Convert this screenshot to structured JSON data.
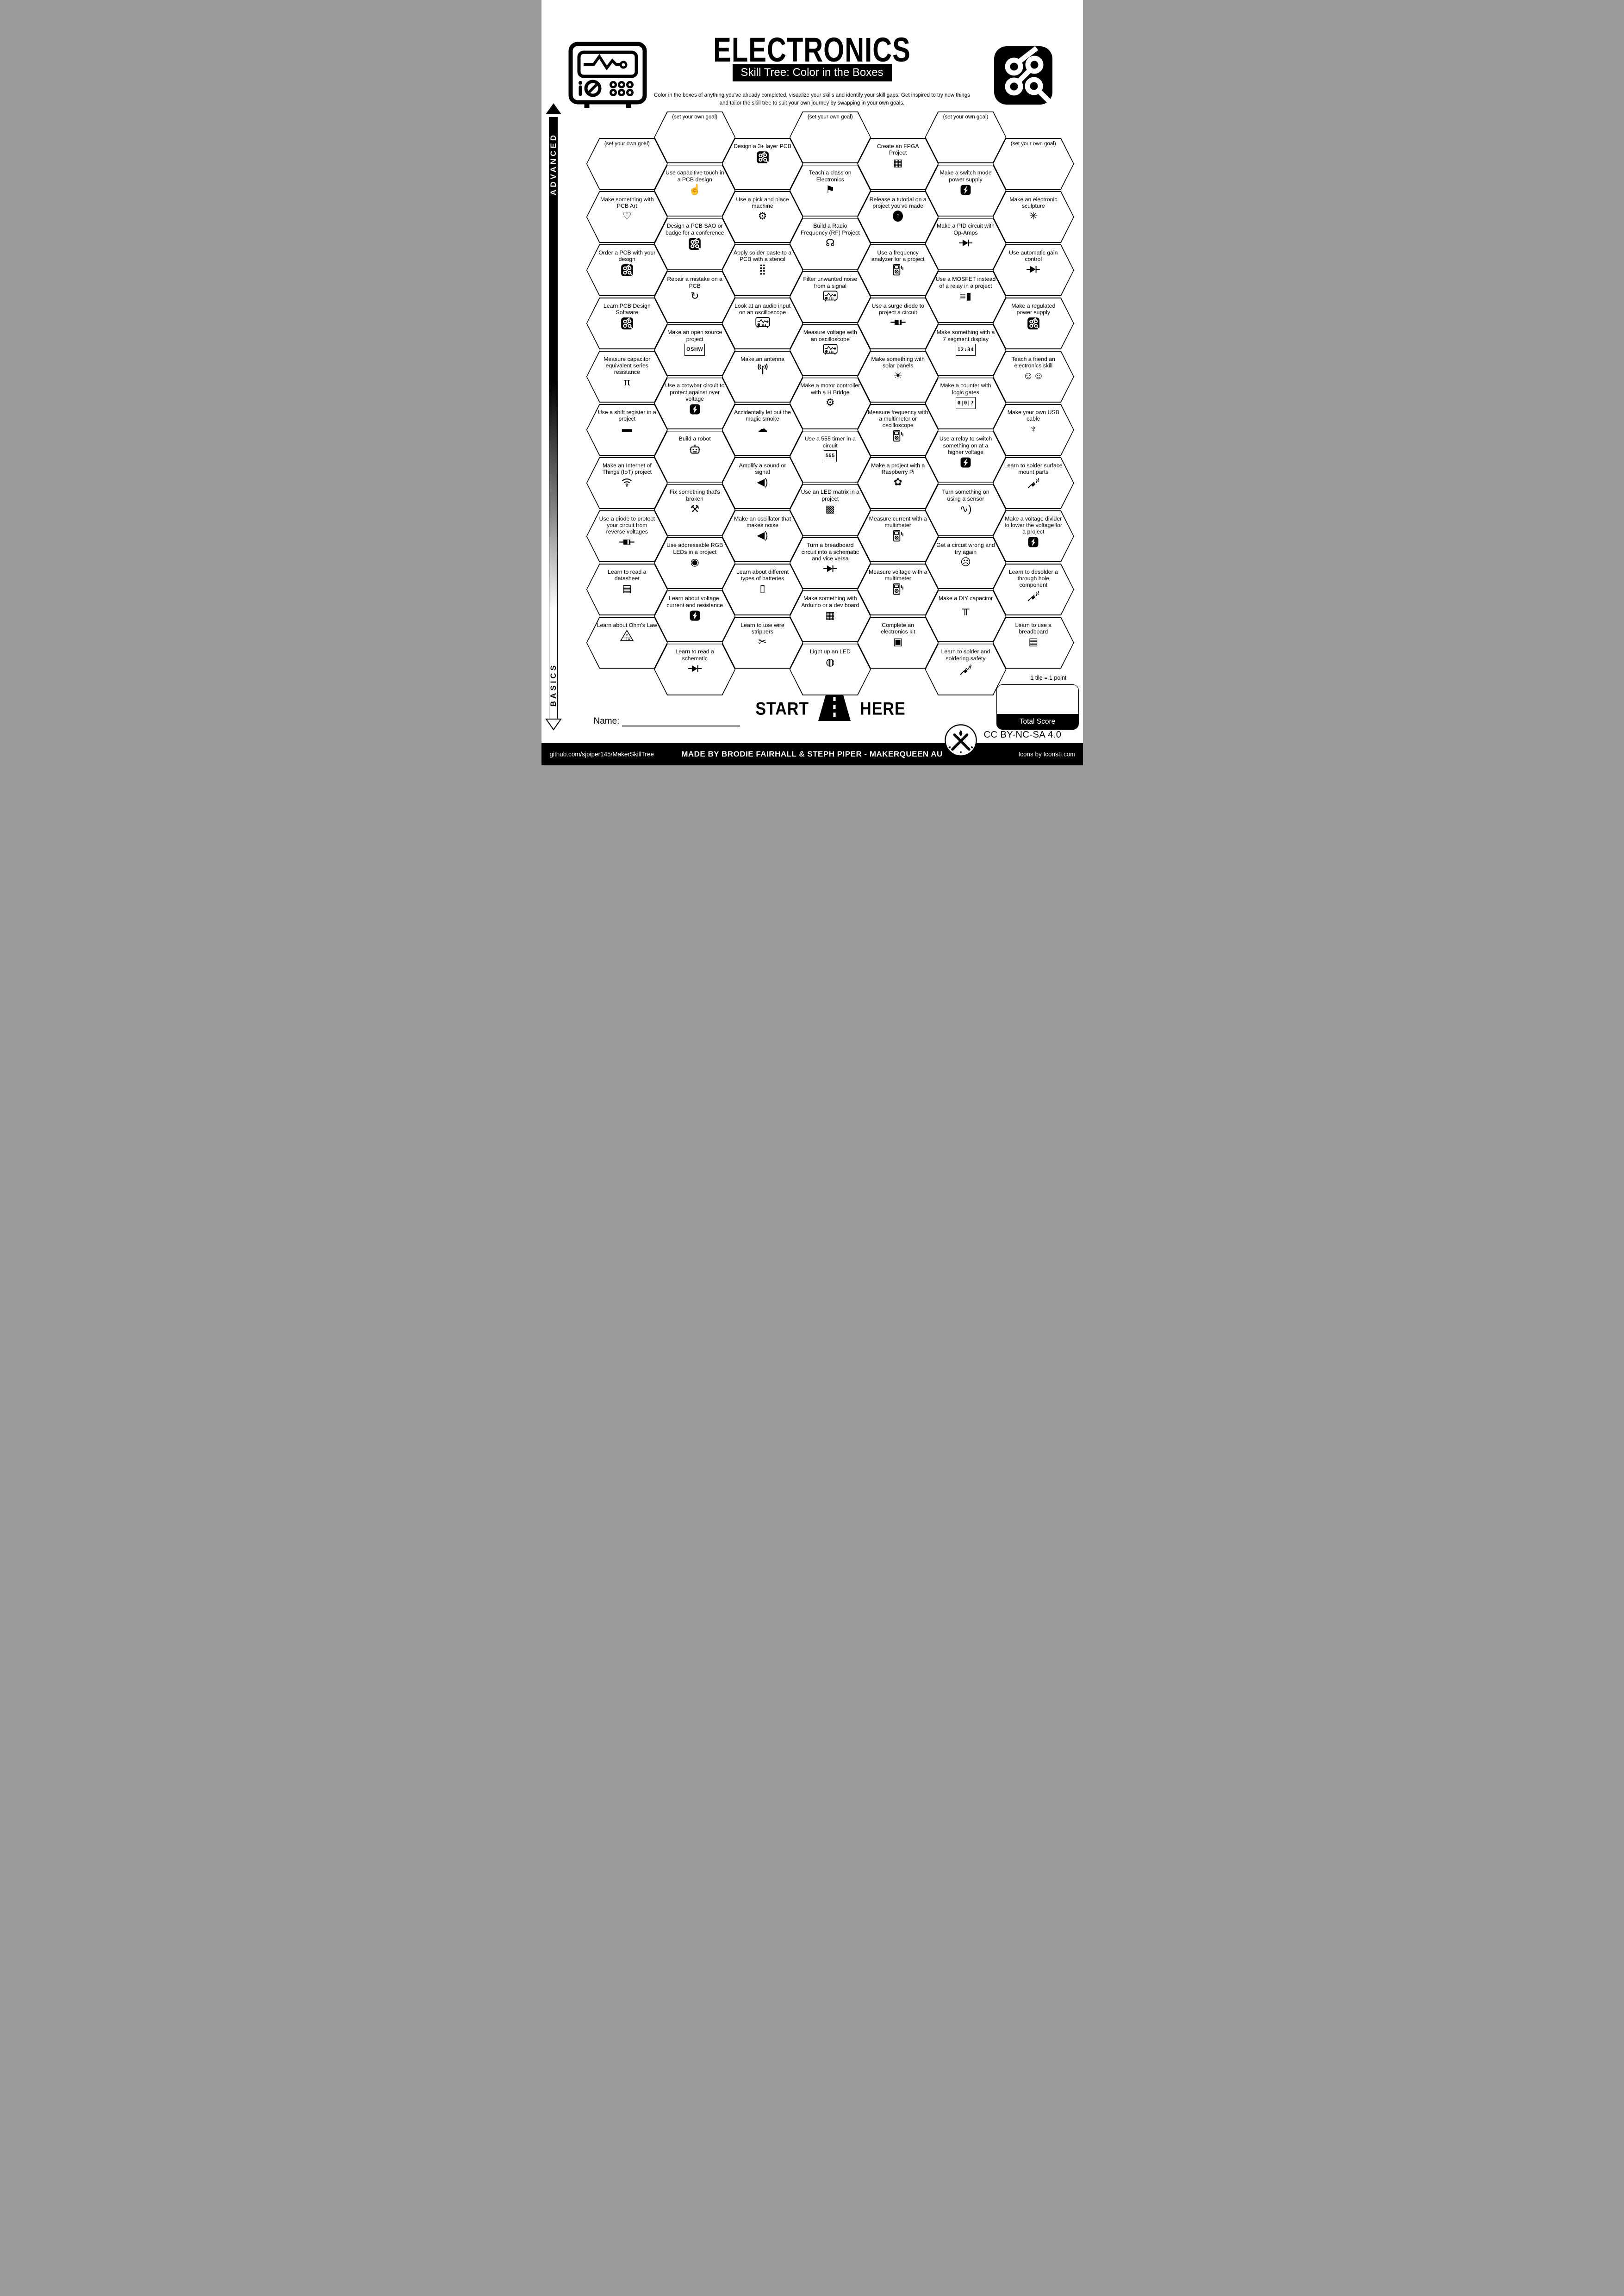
{
  "header": {
    "title": "ELECTRONICS",
    "subtitle": "Skill Tree: Color in the Boxes",
    "description": "Color in the boxes of anything you've already completed, visualize your skills and identify your skill gaps.  Get inspired to try new things and tailor the skill tree to suit your own journey by swapping in your own goals."
  },
  "axis": {
    "advanced": "ADVANCED",
    "basics": "BASICS"
  },
  "start": {
    "start": "START",
    "here": "HERE"
  },
  "name_label": "Name:",
  "scoring": {
    "tile_note": "1 tile = 1 point",
    "total_label": "Total Score"
  },
  "license": "CC BY-NC-SA 4.0",
  "footer": {
    "left": "github.com/sjpiper145/MakerSkillTree",
    "center": "MADE BY BRODIE FAIRHALL & STEPH PIPER  -  MAKERQUEEN AU",
    "right": "Icons by Icons8.com"
  },
  "hexes": [
    {
      "c": 1,
      "r": 0,
      "label": "(set your own goal)",
      "icon": "goal"
    },
    {
      "c": 1,
      "r": 1,
      "label": "Make something with PCB Art",
      "icon": "heart",
      "glyph": "♡"
    },
    {
      "c": 1,
      "r": 2,
      "label": "Order a PCB with your design",
      "icon": "order-pcb",
      "svg": "pcb"
    },
    {
      "c": 1,
      "r": 3,
      "label": "Learn PCB Design Software",
      "icon": "pcb-design-software",
      "svg": "pcb"
    },
    {
      "c": 1,
      "r": 4,
      "label": "Measure capacitor equivalent series resistance",
      "icon": "capacitor-esr",
      "glyph": "π"
    },
    {
      "c": 1,
      "r": 5,
      "label": "Use a shift register in a project",
      "icon": "shift-register",
      "glyph": "▬"
    },
    {
      "c": 1,
      "r": 6,
      "label": "Make an Internet of Things (IoT) project",
      "icon": "wifi",
      "svg": "wifi"
    },
    {
      "c": 1,
      "r": 7,
      "label": "Use a diode to protect your circuit from reverse voltages",
      "icon": "diode-component",
      "svg": "dcomp"
    },
    {
      "c": 1,
      "r": 8,
      "label": "Learn to read a datasheet",
      "icon": "datasheet",
      "glyph": "▤"
    },
    {
      "c": 1,
      "r": 9,
      "label": "Learn about Ohm's Law",
      "icon": "ohms-triangle",
      "svg": "ohm"
    },
    {
      "c": 2,
      "r": 0,
      "label": "(set your own goal)",
      "icon": "goal"
    },
    {
      "c": 2,
      "r": 1,
      "label": "Use capacitive touch in a PCB design",
      "icon": "touch",
      "glyph": "☝"
    },
    {
      "c": 2,
      "r": 2,
      "label": "Design a PCB SAO or badge for a conference",
      "icon": "sao-badge",
      "svg": "pcb"
    },
    {
      "c": 2,
      "r": 3,
      "label": "Repair a mistake on a PCB",
      "icon": "repair",
      "glyph": "↻"
    },
    {
      "c": 2,
      "r": 4,
      "label": "Make an open source project",
      "icon": "oshw-badge",
      "glyph": "OSHW"
    },
    {
      "c": 2,
      "r": 5,
      "label": "Use a crowbar circuit to protect against over voltage",
      "icon": "lightning",
      "svg": "bolt"
    },
    {
      "c": 2,
      "r": 6,
      "label": "Build a robot",
      "icon": "robot",
      "svg": "robot"
    },
    {
      "c": 2,
      "r": 7,
      "label": "Fix something that's broken",
      "icon": "tools",
      "glyph": "⚒"
    },
    {
      "c": 2,
      "r": 8,
      "label": "Use addressable RGB LEDs in a project",
      "icon": "rgb-led",
      "glyph": "◉"
    },
    {
      "c": 2,
      "r": 9,
      "label": "Learn about voltage, current and resistance",
      "icon": "lightning",
      "svg": "bolt"
    },
    {
      "c": 2,
      "r": 10,
      "label": "Learn to read a schematic",
      "icon": "diode-symbol",
      "svg": "diode"
    },
    {
      "c": 3,
      "r": 0,
      "label": "Design a 3+ layer PCB",
      "icon": "multilayer-pcb",
      "svg": "pcb"
    },
    {
      "c": 3,
      "r": 1,
      "label": "Use a pick and place machine",
      "icon": "pick-and-place",
      "glyph": "⚙"
    },
    {
      "c": 3,
      "r": 2,
      "label": "Apply solder paste to a PCB with a stencil",
      "icon": "stencil",
      "glyph": "⣿"
    },
    {
      "c": 3,
      "r": 3,
      "label": "Look at an audio input on an oscilloscope",
      "icon": "oscilloscope",
      "svg": "scope"
    },
    {
      "c": 3,
      "r": 4,
      "label": "Make an antenna",
      "icon": "antenna",
      "svg": "ant"
    },
    {
      "c": 3,
      "r": 5,
      "label": "Accidentally let out the magic smoke",
      "icon": "smoke-cloud",
      "glyph": "☁"
    },
    {
      "c": 3,
      "r": 6,
      "label": "Amplify a sound or signal",
      "icon": "speaker",
      "glyph": "◀)"
    },
    {
      "c": 3,
      "r": 7,
      "label": "Make an oscillator that makes noise",
      "icon": "speaker",
      "glyph": "◀)"
    },
    {
      "c": 3,
      "r": 8,
      "label": "Learn about different types of batteries",
      "icon": "battery",
      "glyph": "▯"
    },
    {
      "c": 3,
      "r": 9,
      "label": "Learn to use wire strippers",
      "icon": "wire-strippers",
      "glyph": "✂"
    },
    {
      "c": 4,
      "r": 0,
      "label": "(set your own goal)",
      "icon": "goal"
    },
    {
      "c": 4,
      "r": 1,
      "label": "Teach a class on Electronics",
      "icon": "presenter",
      "glyph": "⚑"
    },
    {
      "c": 4,
      "r": 2,
      "label": "Build a Radio Frequency (RF) Project",
      "icon": "radio",
      "glyph": "☊"
    },
    {
      "c": 4,
      "r": 3,
      "label": "Filter unwanted noise from a signal",
      "icon": "oscilloscope",
      "svg": "scope"
    },
    {
      "c": 4,
      "r": 4,
      "label": "Measure voltage with an oscilloscope",
      "icon": "oscilloscope",
      "svg": "scope"
    },
    {
      "c": 4,
      "r": 5,
      "label": "Make a motor controller with a H Bridge",
      "icon": "motor",
      "glyph": "⚙"
    },
    {
      "c": 4,
      "r": 6,
      "label": "Use a 555 timer in a circuit",
      "icon": "555-chip",
      "glyph": "555"
    },
    {
      "c": 4,
      "r": 7,
      "label": "Use an LED matrix in a project",
      "icon": "led-matrix",
      "glyph": "▩"
    },
    {
      "c": 4,
      "r": 8,
      "label": "Turn a breadboard circuit into a schematic and vice versa",
      "icon": "diode-symbol",
      "svg": "diode"
    },
    {
      "c": 4,
      "r": 9,
      "label": "Make something with Arduino or a dev board",
      "icon": "dev-board",
      "glyph": "▦"
    },
    {
      "c": 4,
      "r": 10,
      "label": "Light up an LED",
      "icon": "led",
      "glyph": "◍"
    },
    {
      "c": 5,
      "r": 0,
      "label": "Create an FPGA Project",
      "icon": "fpga-grid",
      "glyph": "▦"
    },
    {
      "c": 5,
      "r": 1,
      "label": "Release a tutorial on a project you've made",
      "icon": "upload-arrow",
      "glyph": "↑",
      "circle": true
    },
    {
      "c": 5,
      "r": 2,
      "label": "Use a frequency analyzer for a project",
      "icon": "multimeter",
      "svg": "meter"
    },
    {
      "c": 5,
      "r": 3,
      "label": "Use a surge diode to project a circuit",
      "icon": "diode-component",
      "svg": "dcomp"
    },
    {
      "c": 5,
      "r": 4,
      "label": "Make something with solar panels",
      "icon": "solar-panel",
      "glyph": "☀"
    },
    {
      "c": 5,
      "r": 5,
      "label": "Measure frequency with a multimeter or oscilloscope",
      "icon": "multimeter",
      "svg": "meter"
    },
    {
      "c": 5,
      "r": 6,
      "label": "Make a project with a Raspberry Pi",
      "icon": "raspberry",
      "glyph": "✿"
    },
    {
      "c": 5,
      "r": 7,
      "label": "Measure current with a multimeter",
      "icon": "multimeter",
      "svg": "meter"
    },
    {
      "c": 5,
      "r": 8,
      "label": "Measure voltage with a multimeter",
      "icon": "multimeter",
      "svg": "meter"
    },
    {
      "c": 5,
      "r": 9,
      "label": "Complete an electronics kit",
      "icon": "kit-box",
      "glyph": "▣"
    },
    {
      "c": 6,
      "r": 0,
      "label": "(set your own goal)",
      "icon": "goal"
    },
    {
      "c": 6,
      "r": 1,
      "label": "Make a switch mode power supply",
      "icon": "lightning",
      "svg": "bolt"
    },
    {
      "c": 6,
      "r": 2,
      "label": "Make a PID circuit with Op-Amps",
      "icon": "opamp-symbol",
      "svg": "diode"
    },
    {
      "c": 6,
      "r": 3,
      "label": "Use a MOSFET instead of a relay in a project",
      "icon": "mosfet",
      "glyph": "≡▮"
    },
    {
      "c": 6,
      "r": 4,
      "label": "Make something with a 7 segment display",
      "icon": "7-segment",
      "glyph": "12:34",
      "mono": true
    },
    {
      "c": 6,
      "r": 5,
      "label": "Make a counter with logic gates",
      "icon": "digit-counter",
      "glyph": "0|0|7",
      "mono": true
    },
    {
      "c": 6,
      "r": 6,
      "label": "Use a relay to switch something on at a higher voltage",
      "icon": "lightning",
      "svg": "bolt"
    },
    {
      "c": 6,
      "r": 7,
      "label": "Turn something on using a sensor",
      "icon": "sensor-wave",
      "glyph": "∿)"
    },
    {
      "c": 6,
      "r": 8,
      "label": "Get a circuit wrong and try again",
      "icon": "facepalm",
      "glyph": "☹"
    },
    {
      "c": 6,
      "r": 9,
      "label": "Make a DIY capacitor",
      "icon": "capacitor",
      "glyph": "╥"
    },
    {
      "c": 6,
      "r": 10,
      "label": "Learn to solder and soldering safety",
      "icon": "soldering-iron",
      "svg": "iron"
    },
    {
      "c": 7,
      "r": 0,
      "label": "(set your own goal)",
      "icon": "goal"
    },
    {
      "c": 7,
      "r": 1,
      "label": "Make an electronic sculpture",
      "icon": "sculpture",
      "glyph": "✳"
    },
    {
      "c": 7,
      "r": 2,
      "label": "Use automatic gain control",
      "icon": "diode-symbol",
      "svg": "diode"
    },
    {
      "c": 7,
      "r": 3,
      "label": "Make a regulated power supply",
      "icon": "pcb",
      "svg": "pcb"
    },
    {
      "c": 7,
      "r": 4,
      "label": "Teach a friend an electronics skill",
      "icon": "two-people",
      "glyph": "☺☺"
    },
    {
      "c": 7,
      "r": 5,
      "label": "Make your own USB cable",
      "icon": "usb",
      "glyph": "♆"
    },
    {
      "c": 7,
      "r": 6,
      "label": "Learn to solder surface mount parts",
      "icon": "soldering-iron",
      "svg": "iron"
    },
    {
      "c": 7,
      "r": 7,
      "label": "Make a voltage divider to lower the voltage for a project",
      "icon": "lightning",
      "svg": "bolt"
    },
    {
      "c": 7,
      "r": 8,
      "label": "Learn to desolder a through hole component",
      "icon": "soldering-iron",
      "svg": "iron"
    },
    {
      "c": 7,
      "r": 9,
      "label": "Learn to use a breadboard",
      "icon": "breadboard",
      "glyph": "▤"
    }
  ],
  "icon_svgs": {
    "pcb": "<svg viewBox='0 0 24 24' width='28' height='28'><rect x='1' y='1' width='22' height='22' rx='5' fill='#000'/><g fill='none' stroke='#fff' stroke-width='2'><circle cx='8' cy='8.5' r='2.6'/><circle cx='16.5' cy='8' r='2.6'/><circle cx='8' cy='16.5' r='2.6'/><circle cx='16.5' cy='16.5' r='2.6'/><path d='M10 7 L17 1.5'/><path d='M15 10 L9.5 15'/><path d='M18.3 18.3 L22.5 22.5'/></g></svg>",
    "meter": "<svg viewBox='0 0 24 24' width='26' height='26' fill='none' stroke='#000' stroke-width='1.6'><rect x='3' y='1.5' width='13' height='21' rx='2'/><rect x='5.5' y='4' width='8' height='5'/><circle cx='9.5' cy='15.5' r='3.2'/><path d='M8 17 L11 14'/><path d='M19.5 4 v6 M22 7 v6'/><circle cx='14' cy='20' r='0.9' fill='#000' stroke='none'/></svg>",
    "scope": "<svg viewBox='0 0 28 22' width='32' height='25' fill='none' stroke='#000' stroke-width='1.5'><rect x='1' y='1' width='26' height='17' rx='3'/><path d='M4 9 h4 l3-4 4 6 3-4 2 2 h3' stroke-width='1.3'/><circle cx='23' cy='9' r='1.3'/><circle cx='6.5' cy='14.5' r='1.8'/><path d='M5.5 15.5 L7.5 13.5' stroke-width='1.2'/><g fill='#000' stroke='none'><circle cx='13' cy='14' r='0.9'/><circle cx='16' cy='14' r='0.9'/><circle cx='19' cy='14' r='0.9'/><circle cx='13' cy='16.2' r='0.9'/><circle cx='16' cy='16.2' r='0.9'/><circle cx='19' cy='16.2' r='0.9'/></g><path d='M5 18 v2.5 M23 18 v2.5' stroke-width='2'/></svg>",
    "iron": "<svg viewBox='0 0 24 24' width='27' height='27' fill='none' stroke='#000' stroke-width='1.8' stroke-linecap='round'><path d='M2.5 21.5 L8.5 15.5'/><path d='M8.5 15.8 l3.2-3.2 2.8 2.8 -3.2 3.2 z' fill='#000' stroke-width='1.2'/><path d='M12.5 11.5 l1.3-1.3 M14.3 13.3 l1.3-1.3' stroke-width='1.3'/><path d='M18.5 5.5 q1.6 1.6 0 3.2 q-1.6 1.6 0 3.2' stroke-width='1.3'/><path d='M21.7 3.5 q1.6 1.6 0 3.2 q-1.6 1.6 0 3.2' stroke-width='1.3'/></svg>",
    "bolt": "<svg viewBox='0 0 24 24' width='25' height='25'><rect x='1.5' y='1.5' width='21' height='21' rx='5' fill='#000'/><path d='M14.8 3.5 L7.5 12.6 h3.6 L9.2 20.5 L16.5 11.4 h-3.6 z' fill='#fff'/></svg>",
    "diode": "<svg viewBox='0 0 28 18' width='31' height='20'><path d='M1 9 h7 M20 9 h7 M19.5 2.5 v13' fill='none' stroke='#000' stroke-width='1.8'/><path d='M8 2.5 L19 9 L8 15.5 z' fill='#000'/></svg>",
    "dcomp": "<svg viewBox='0 0 30 12' width='33' height='13'><path d='M0 6 h8 M22 6 h8' stroke='#000' stroke-width='2'/><rect x='8' y='1' width='14' height='10' fill='#000'/><rect x='16' y='1.5' width='3' height='9' fill='#efefef'/></svg>",
    "ohm": "<svg viewBox='0 0 26 22' width='29' height='25'><path d='M13 1 L25 21 H1 z' fill='none' stroke='#000' stroke-width='1.4'/><path d='M6 13.8 h14 M13 13.8 v7' stroke='#000' stroke-width='1.1'/><text x='13' y='12' font-size='6.5' text-anchor='middle' font-family='Liberation Sans'>V</text><text x='9.2' y='20' font-size='6.5' text-anchor='middle' font-family='Liberation Sans'>I</text><text x='17.5' y='20' font-size='6.5' text-anchor='middle' font-family='Liberation Sans'>R</text></svg>",
    "wifi": "<svg viewBox='0 0 24 19' width='27' height='22' fill='none' stroke='#000' stroke-width='1.8'><path d='M3 7.5 a12 12 0 0 1 18 0'/><path d='M6.5 11 a8 8 0 0 1 11 0'/><path d='M9.6 14 a4.2 4.2 0 0 1 4.8 0'/><circle cx='12' cy='16.8' r='1.4' fill='#000' stroke='none'/></svg>",
    "ant": "<svg viewBox='0 0 24 22' width='26' height='24' fill='none' stroke='#000' stroke-width='1.7'><path d='M12 8 v13' stroke-width='2.2'/><circle cx='12' cy='6' r='1.8' fill='#000' stroke='none'/><path d='M8 10 a6.5 6.5 0 0 1 0-8'/><path d='M5 12 a10.5 10.5 0 0 1 0-12'/><path d='M16 10 a6.5 6.5 0 0 0 0-8'/><path d='M19 12 a10.5 10.5 0 0 0 0-12'/></svg>",
    "robot": "<svg viewBox='0 0 24 22' width='27' height='25' fill='none' stroke='#000' stroke-width='1.7'><rect x='4' y='6' width='16' height='12' rx='3'/><circle cx='9' cy='11' r='1.5' fill='#000' stroke='none'/><circle cx='15' cy='11' r='1.5' fill='#000' stroke='none'/><path d='M8.5 15.3 h7'/><path d='M10 15.3 v2 M12 15.3 v2 M14 15.3 v2' stroke-width='1.1'/><path d='M12 6 V3.8'/><circle cx='12' cy='2.6' r='1.3' fill='#000' stroke='none'/><path d='M2 11.5 h2 M20 11.5 h2'/></svg>"
  }
}
